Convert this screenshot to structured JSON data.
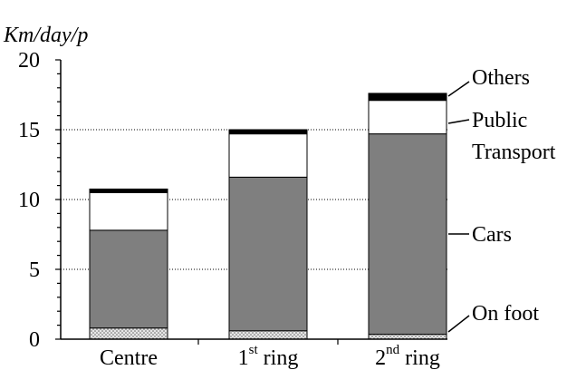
{
  "chart_data": {
    "type": "bar",
    "stacked": true,
    "ylabel": "Km/day/p",
    "ylim": [
      0,
      20
    ],
    "yticks": [
      0,
      5,
      10,
      15,
      20
    ],
    "grid": "horizontal dotted at 5, 10, 15",
    "categories": [
      {
        "base": "Centre",
        "sup": "",
        "suffix": ""
      },
      {
        "base": "1",
        "sup": "st",
        "suffix": " ring"
      },
      {
        "base": "2",
        "sup": "nd",
        "suffix": " ring"
      }
    ],
    "series": [
      {
        "name": "On foot",
        "values": [
          0.8,
          0.6,
          0.35
        ],
        "fill": "#d8d8d8",
        "pattern": "dots"
      },
      {
        "name": "Cars",
        "values": [
          7.0,
          11.0,
          14.35
        ],
        "fill": "#7f7f7f"
      },
      {
        "name": "Public Transport",
        "values": [
          2.7,
          3.1,
          2.4
        ],
        "fill": "#ffffff"
      },
      {
        "name": "Others",
        "values": [
          0.25,
          0.3,
          0.5
        ],
        "fill": "#000000"
      }
    ],
    "legend_labels": {
      "others": "Others",
      "public_line1": "Public",
      "public_line2": "Transport",
      "cars": "Cars",
      "on_foot": "On foot"
    },
    "legend_placement": "right, pointing to third bar"
  }
}
